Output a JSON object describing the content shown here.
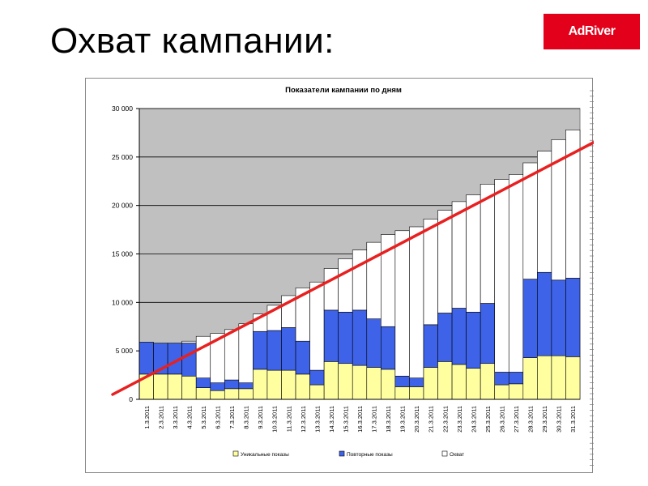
{
  "slide": {
    "title": "Охват кампании:",
    "logo_text": "AdRiver",
    "logo_color": "#e3001b"
  },
  "chart_data": {
    "type": "bar",
    "stacked": true,
    "title": "Показатели кампании по дням",
    "xlabel": "",
    "ylabel": "",
    "ylim": [
      0,
      30000
    ],
    "yticks": [
      0,
      5000,
      10000,
      15000,
      20000,
      25000,
      30000
    ],
    "ytick_labels": [
      "0",
      "5 000",
      "10 000",
      "15 000",
      "20 000",
      "25 000",
      "30 000"
    ],
    "grid": true,
    "plot_background": "#c0c0c0",
    "legend_position": "bottom",
    "categories": [
      "1.3.2011",
      "2.3.2011",
      "3.3.2011",
      "4.3.2011",
      "5.3.2011",
      "6.3.2011",
      "7.3.2011",
      "8.3.2011",
      "9.3.2011",
      "10.3.2011",
      "11.3.2011",
      "12.3.2011",
      "13.3.2011",
      "14.3.2011",
      "15.3.2011",
      "16.3.2011",
      "17.3.2011",
      "18.3.2011",
      "19.3.2011",
      "20.3.2011",
      "21.3.2011",
      "22.3.2011",
      "23.3.2011",
      "24.3.2011",
      "25.3.2011",
      "26.3.2011",
      "27.3.2011",
      "28.3.2011",
      "29.3.2011",
      "30.3.2011",
      "31.3.2011"
    ],
    "series": [
      {
        "name": "Уникальные показы",
        "color": "#ffffa0",
        "values": [
          2600,
          2600,
          2600,
          2400,
          1200,
          900,
          1100,
          1100,
          3100,
          3000,
          3000,
          2600,
          1500,
          3900,
          3700,
          3500,
          3300,
          3100,
          1300,
          1300,
          3300,
          3900,
          3600,
          3200,
          3700,
          1500,
          1600,
          4300,
          4500,
          4500,
          4400
        ]
      },
      {
        "name": "Повторные показы",
        "color": "#3e63e8",
        "values": [
          3300,
          3200,
          3200,
          3400,
          1000,
          800,
          900,
          600,
          3900,
          4100,
          4400,
          3400,
          1500,
          5300,
          5300,
          5700,
          5000,
          4400,
          1100,
          900,
          4400,
          5000,
          5800,
          5800,
          6200,
          1300,
          1200,
          8100,
          8600,
          7800,
          8100
        ]
      },
      {
        "name": "Охват",
        "color": "#ffffff",
        "values": [
          0,
          0,
          0,
          200,
          4300,
          5100,
          5200,
          6100,
          1800,
          2600,
          3300,
          5500,
          9100,
          4300,
          5500,
          6200,
          7900,
          9500,
          15000,
          15600,
          10900,
          10600,
          11000,
          12100,
          12300,
          19900,
          20400,
          12000,
          12500,
          14500,
          15300
        ]
      }
    ],
    "trend_line": {
      "color": "#e82020",
      "from": [
        0.5,
        500
      ],
      "to": [
        32.5,
        27000
      ]
    }
  }
}
